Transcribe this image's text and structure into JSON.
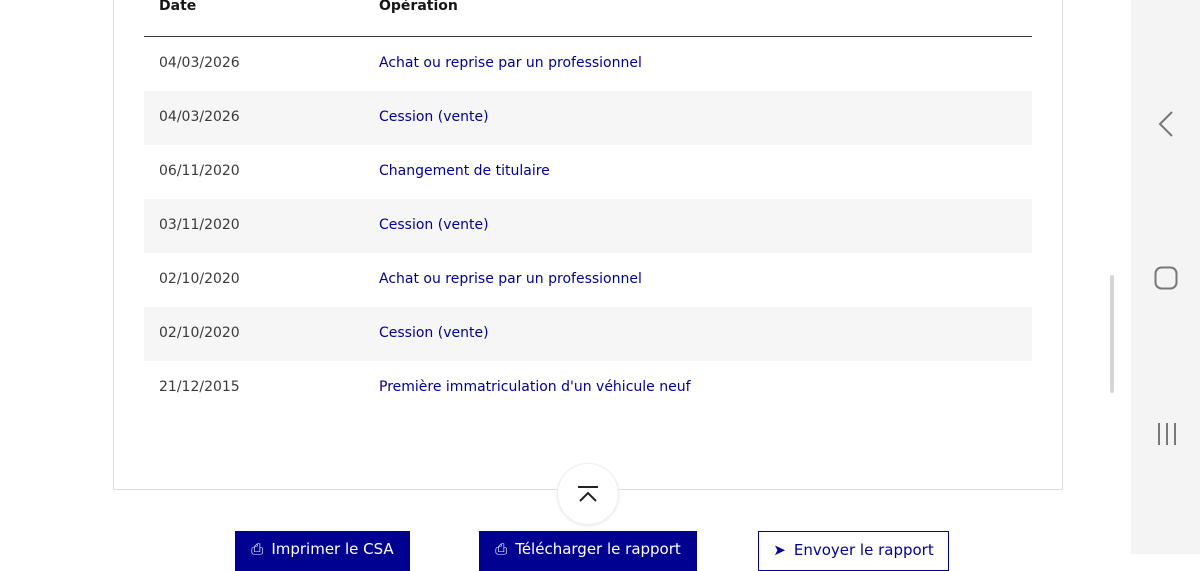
{
  "table": {
    "headers": {
      "date": "Date",
      "operation": "Opération"
    },
    "rows": [
      {
        "date": "04/03/2026",
        "operation": "Achat ou reprise par un professionnel"
      },
      {
        "date": "04/03/2026",
        "operation": "Cession (vente)"
      },
      {
        "date": "06/11/2020",
        "operation": "Changement de titulaire"
      },
      {
        "date": "03/11/2020",
        "operation": "Cession (vente)"
      },
      {
        "date": "02/10/2020",
        "operation": "Achat ou reprise par un professionnel"
      },
      {
        "date": "02/10/2020",
        "operation": "Cession (vente)"
      },
      {
        "date": "21/12/2015",
        "operation": "Première immatriculation d'un véhicule neuf"
      }
    ]
  },
  "actions": {
    "print": "Imprimer le CSA",
    "download": "Télécharger le rapport",
    "send": "Envoyer le rapport"
  },
  "colors": {
    "accent": "#000091"
  }
}
